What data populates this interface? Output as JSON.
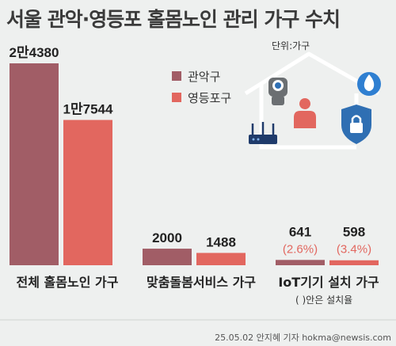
{
  "title": "서울 관악·영등포 홀몸노인 관리 가구 수치",
  "unit_label": "단위:가구",
  "note": "( )안은 설치율",
  "credit": "25.05.02 안지혜 기자 hokma@newsis.com",
  "icons": [
    "house-outline-icon",
    "security-camera-icon",
    "person-icon",
    "fire-icon",
    "router-icon",
    "lock-shield-icon"
  ],
  "colors": {
    "gwanak": "#a15d66",
    "yeongdeungpo": "#e2675f",
    "background": "#eef0ef",
    "sensor_text": "#e2675f"
  },
  "chart_data": {
    "type": "bar",
    "categories": [
      "전체 홀몸노인 가구",
      "맞춤돌봄서비스 가구",
      "IoT기기 설치 가구"
    ],
    "series": [
      {
        "name": "관악구",
        "values": [
          24380,
          2000,
          641
        ],
        "value_labels": [
          "2만4380",
          "2000",
          "641"
        ],
        "rate_labels": [
          "",
          "",
          "(2.6%)"
        ]
      },
      {
        "name": "영등포구",
        "values": [
          17544,
          1488,
          598
        ],
        "value_labels": [
          "1만7544",
          "1488",
          "598"
        ],
        "rate_labels": [
          "",
          "",
          "(3.4%)"
        ]
      }
    ],
    "title": "서울 관악·영등포 홀몸노인 관리 가구 수치",
    "legend_position": "top-center",
    "grid": false
  }
}
